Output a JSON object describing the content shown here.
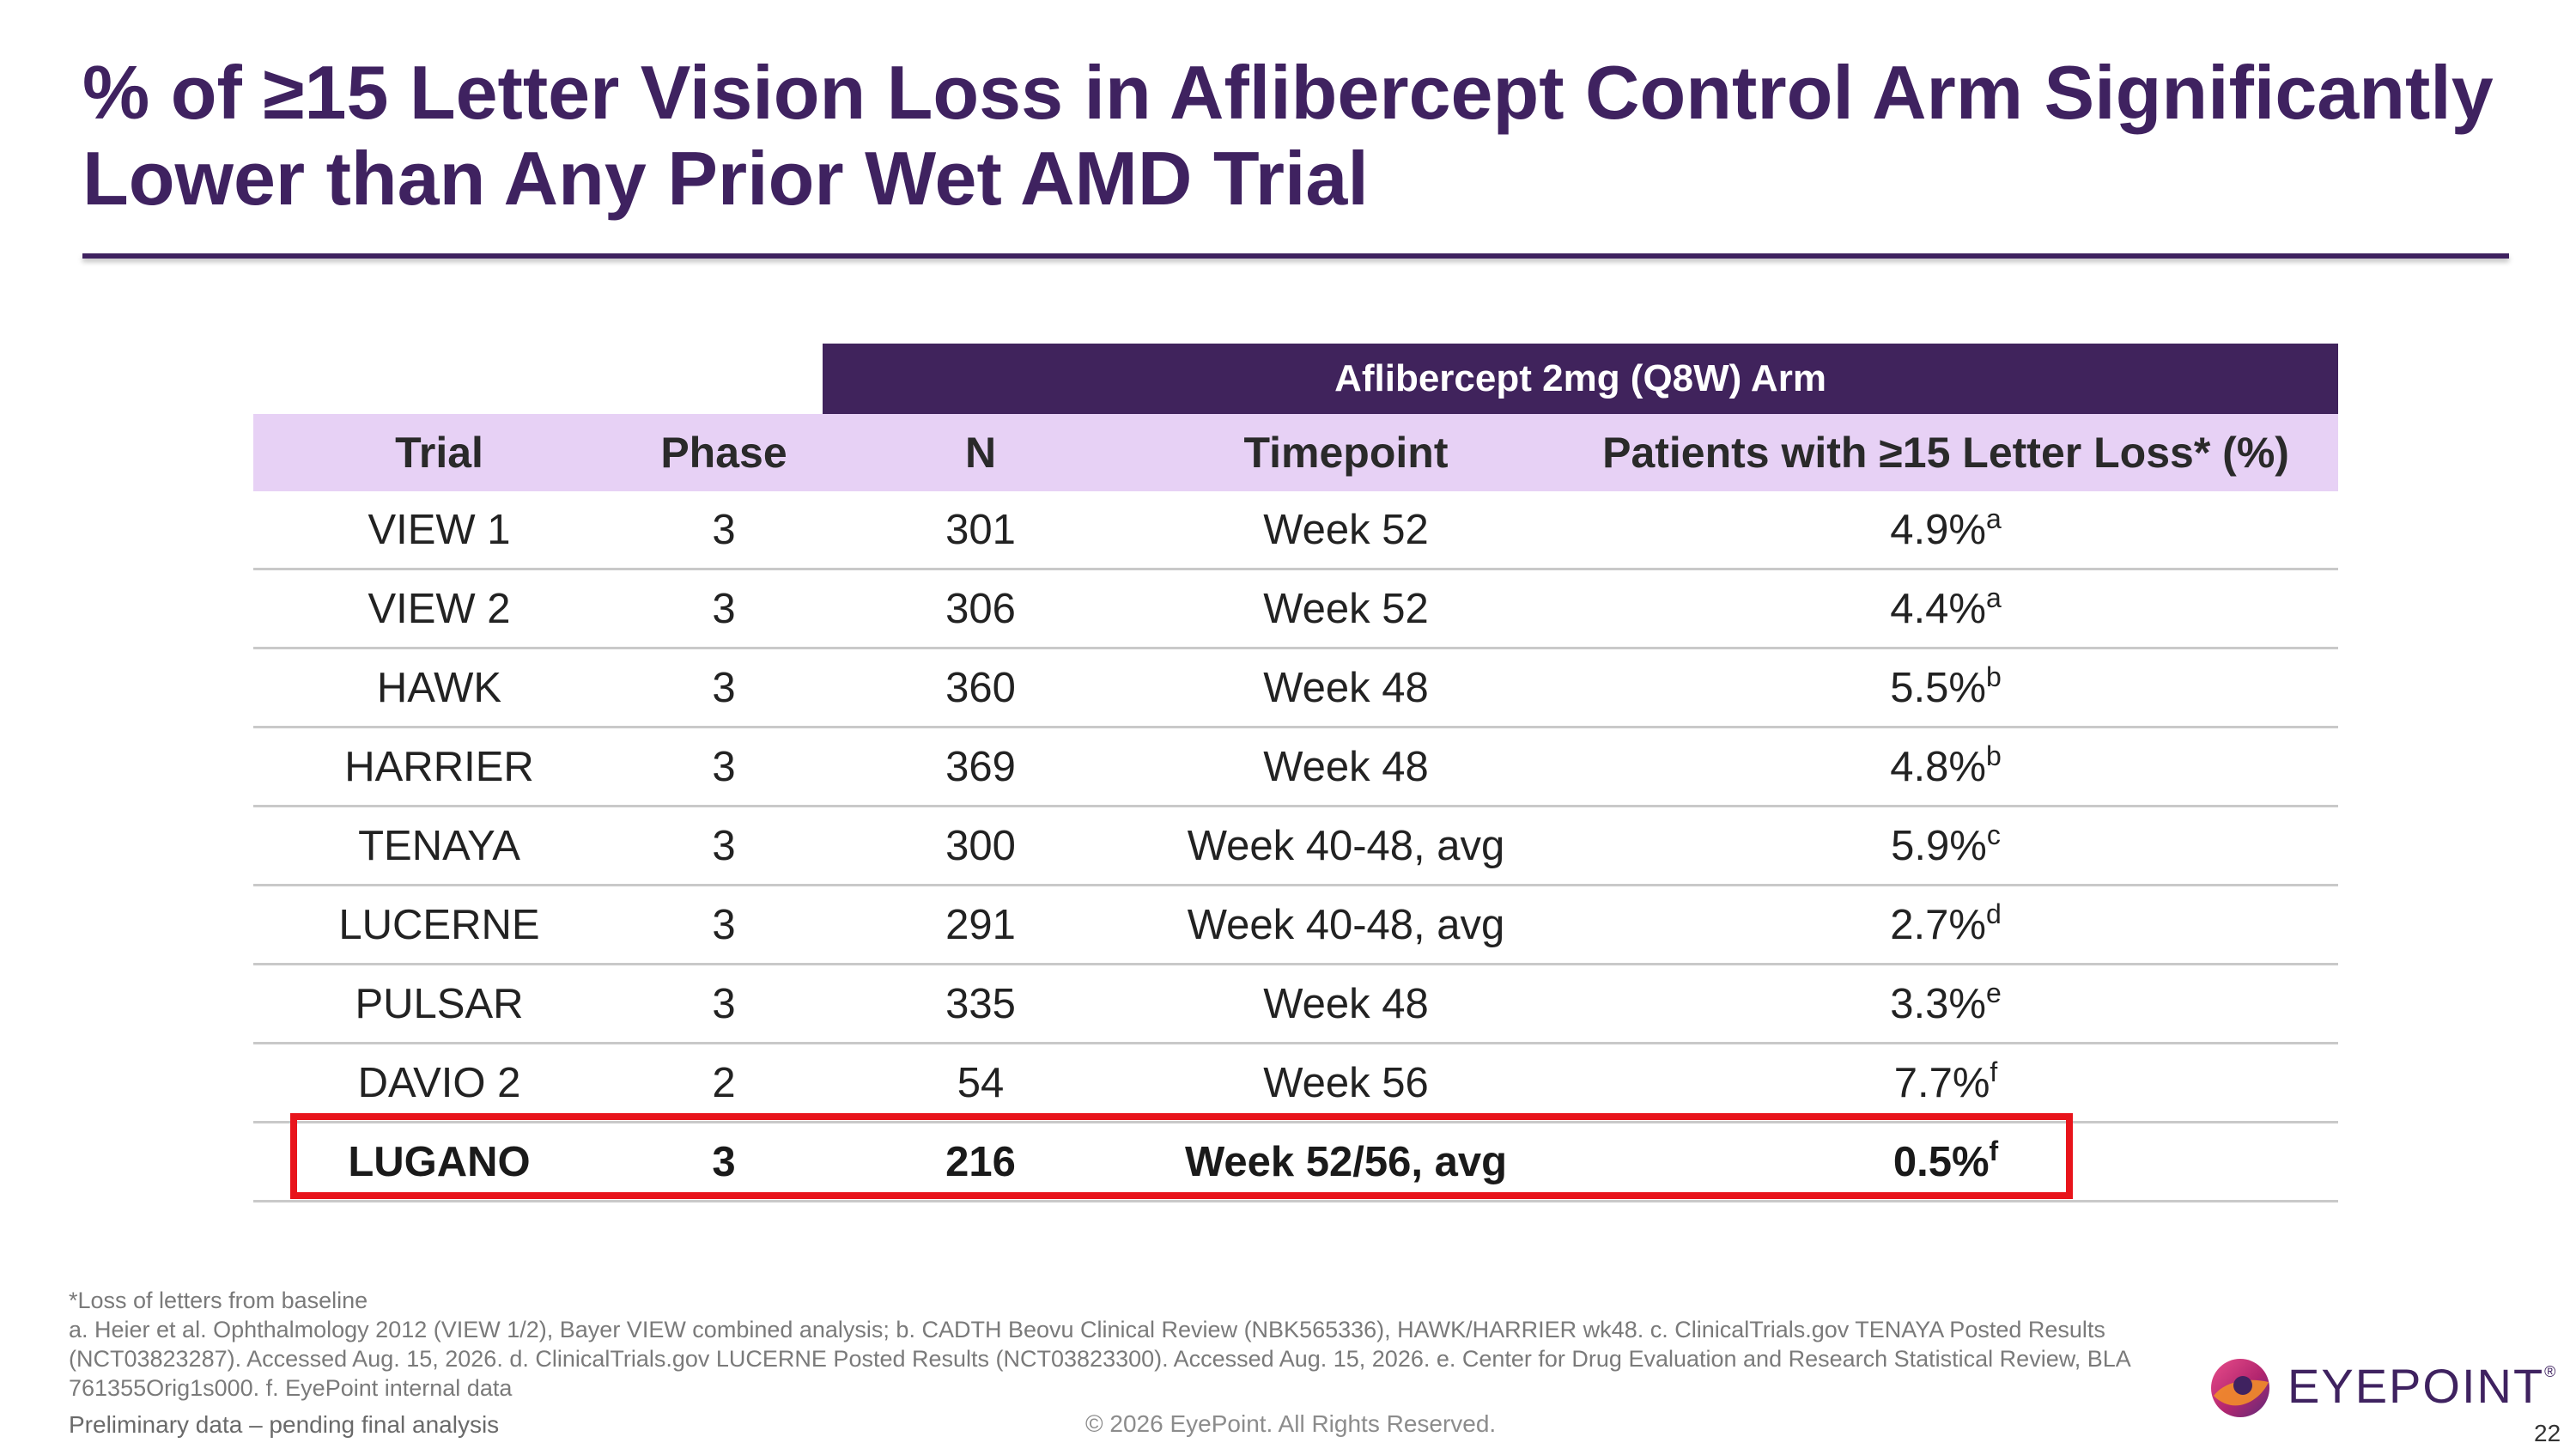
{
  "slide": {
    "title": "% of ≥15 Letter Vision Loss in Aflibercept Control Arm Significantly Lower than Any Prior Wet AMD Trial",
    "page_number": "22"
  },
  "table": {
    "group_header": "Aflibercept 2mg (Q8W) Arm",
    "columns": {
      "trial": "Trial",
      "phase": "Phase",
      "n": "N",
      "timepoint": "Timepoint",
      "loss": "Patients with ≥15 Letter Loss* (%)"
    },
    "rows": [
      {
        "trial": "VIEW 1",
        "phase": "3",
        "n": "301",
        "timepoint": "Week 52",
        "loss": "4.9%",
        "ref": "a"
      },
      {
        "trial": "VIEW 2",
        "phase": "3",
        "n": "306",
        "timepoint": "Week 52",
        "loss": "4.4%",
        "ref": "a"
      },
      {
        "trial": "HAWK",
        "phase": "3",
        "n": "360",
        "timepoint": "Week 48",
        "loss": "5.5%",
        "ref": "b"
      },
      {
        "trial": "HARRIER",
        "phase": "3",
        "n": "369",
        "timepoint": "Week 48",
        "loss": "4.8%",
        "ref": "b"
      },
      {
        "trial": "TENAYA",
        "phase": "3",
        "n": "300",
        "timepoint": "Week 40-48, avg",
        "loss": "5.9%",
        "ref": "c"
      },
      {
        "trial": "LUCERNE",
        "phase": "3",
        "n": "291",
        "timepoint": "Week 40-48, avg",
        "loss": "2.7%",
        "ref": "d"
      },
      {
        "trial": "PULSAR",
        "phase": "3",
        "n": "335",
        "timepoint": "Week 48",
        "loss": "3.3%",
        "ref": "e"
      },
      {
        "trial": "DAVIO 2",
        "phase": "2",
        "n": "54",
        "timepoint": "Week 56",
        "loss": "7.7%",
        "ref": "f"
      },
      {
        "trial": "LUGANO",
        "phase": "3",
        "n": "216",
        "timepoint": "Week 52/56, avg",
        "loss": "0.5%",
        "ref": "f"
      }
    ]
  },
  "footnotes": {
    "asterisk": "*Loss of letters from baseline",
    "references": "a. Heier et al. Ophthalmology 2012 (VIEW 1/2), Bayer VIEW combined analysis; b. CADTH Beovu Clinical Review (NBK565336), HAWK/HARRIER wk48. c. ClinicalTrials.gov TENAYA Posted Results (NCT03823287). Accessed Aug. 15, 2026. d. ClinicalTrials.gov LUCERNE Posted Results (NCT03823300). Accessed Aug. 15, 2026. e. Center for Drug Evaluation and Research Statistical Review, BLA 761355Orig1s000. f. EyePoint internal data",
    "preliminary": "Preliminary data – pending final analysis",
    "copyright": "© 2026 EyePoint. All Rights Reserved."
  },
  "logo": {
    "text": "EYEPOINT",
    "icon": "eyepoint-logo-mark"
  },
  "colors": {
    "brand_purple": "#3f2260",
    "header_lavender": "#e7d1f5",
    "highlight_red": "#e8141b"
  }
}
